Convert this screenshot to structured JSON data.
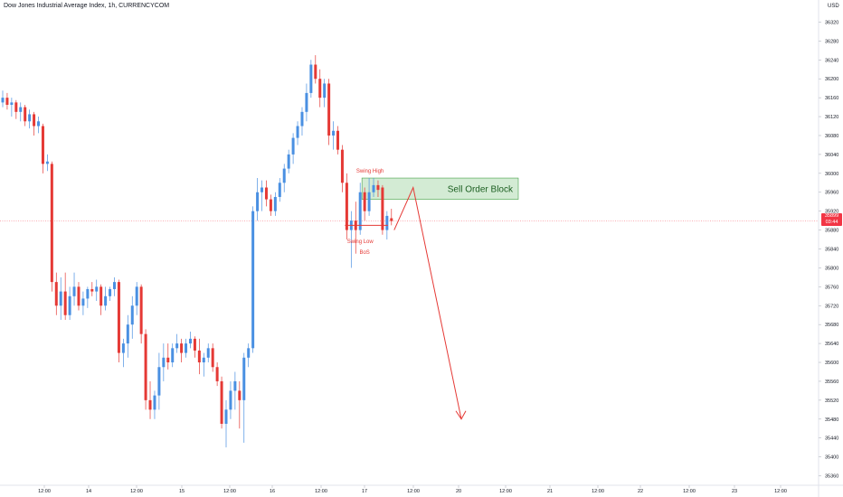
{
  "chart_data": {
    "type": "candlestick",
    "title": "Dow Jones Industrial Average Index, 1h, CURRENCYCOM",
    "currency": "USD",
    "ylim": [
      35340,
      36340
    ],
    "y_ticks": [
      36320,
      36280,
      36240,
      36200,
      36160,
      36120,
      36080,
      36040,
      36000,
      35960,
      35920,
      35880,
      35840,
      35800,
      35760,
      35720,
      35680,
      35640,
      35600,
      35560,
      35520,
      35480,
      35440,
      35400,
      35360
    ],
    "x_ticks": [
      "12:00",
      "14",
      "12:00",
      "15",
      "12:00",
      "16",
      "12:00",
      "17",
      "12:00",
      "20",
      "12:00",
      "21",
      "12:00",
      "22",
      "12:00",
      "23",
      "12:00"
    ],
    "current_price": "35899",
    "countdown": "03:44",
    "colors": {
      "up": "#4a90e2",
      "down": "#e53935",
      "zone_fill": "#c8e6c9",
      "zone_border": "#43a047",
      "annotation": "#e53935",
      "price_line": "#f23645"
    },
    "candles": [
      {
        "o": 36150,
        "h": 36175,
        "l": 36140,
        "c": 36160
      },
      {
        "o": 36160,
        "h": 36170,
        "l": 36135,
        "c": 36145
      },
      {
        "o": 36145,
        "h": 36160,
        "l": 36120,
        "c": 36150
      },
      {
        "o": 36150,
        "h": 36155,
        "l": 36115,
        "c": 36130
      },
      {
        "o": 36130,
        "h": 36150,
        "l": 36110,
        "c": 36140
      },
      {
        "o": 36140,
        "h": 36145,
        "l": 36100,
        "c": 36110
      },
      {
        "o": 36110,
        "h": 36135,
        "l": 36095,
        "c": 36125
      },
      {
        "o": 36125,
        "h": 36130,
        "l": 36080,
        "c": 36100
      },
      {
        "o": 36100,
        "h": 36120,
        "l": 36085,
        "c": 36110
      },
      {
        "o": 36100,
        "h": 36105,
        "l": 36000,
        "c": 36020
      },
      {
        "o": 36020,
        "h": 36040,
        "l": 36005,
        "c": 36025
      },
      {
        "o": 36020,
        "h": 36025,
        "l": 35750,
        "c": 35770
      },
      {
        "o": 35770,
        "h": 35790,
        "l": 35700,
        "c": 35720
      },
      {
        "o": 35720,
        "h": 35780,
        "l": 35690,
        "c": 35750
      },
      {
        "o": 35750,
        "h": 35790,
        "l": 35690,
        "c": 35700
      },
      {
        "o": 35700,
        "h": 35760,
        "l": 35690,
        "c": 35740
      },
      {
        "o": 35740,
        "h": 35790,
        "l": 35720,
        "c": 35760
      },
      {
        "o": 35760,
        "h": 35770,
        "l": 35710,
        "c": 35720
      },
      {
        "o": 35720,
        "h": 35750,
        "l": 35700,
        "c": 35735
      },
      {
        "o": 35735,
        "h": 35760,
        "l": 35715,
        "c": 35755
      },
      {
        "o": 35755,
        "h": 35770,
        "l": 35740,
        "c": 35750
      },
      {
        "o": 35750,
        "h": 35775,
        "l": 35730,
        "c": 35760
      },
      {
        "o": 35760,
        "h": 35765,
        "l": 35700,
        "c": 35720
      },
      {
        "o": 35720,
        "h": 35760,
        "l": 35710,
        "c": 35740
      },
      {
        "o": 35740,
        "h": 35760,
        "l": 35730,
        "c": 35755
      },
      {
        "o": 35755,
        "h": 35780,
        "l": 35740,
        "c": 35770
      },
      {
        "o": 35770,
        "h": 35775,
        "l": 35600,
        "c": 35620
      },
      {
        "o": 35620,
        "h": 35650,
        "l": 35590,
        "c": 35640
      },
      {
        "o": 35640,
        "h": 35700,
        "l": 35610,
        "c": 35680
      },
      {
        "o": 35680,
        "h": 35740,
        "l": 35650,
        "c": 35720
      },
      {
        "o": 35720,
        "h": 35770,
        "l": 35700,
        "c": 35760
      },
      {
        "o": 35760,
        "h": 35765,
        "l": 35640,
        "c": 35660
      },
      {
        "o": 35660,
        "h": 35670,
        "l": 35500,
        "c": 35520
      },
      {
        "o": 35520,
        "h": 35560,
        "l": 35480,
        "c": 35500
      },
      {
        "o": 35500,
        "h": 35540,
        "l": 35480,
        "c": 35530
      },
      {
        "o": 35530,
        "h": 35620,
        "l": 35500,
        "c": 35590
      },
      {
        "o": 35590,
        "h": 35640,
        "l": 35560,
        "c": 35610
      },
      {
        "o": 35610,
        "h": 35640,
        "l": 35585,
        "c": 35600
      },
      {
        "o": 35600,
        "h": 35640,
        "l": 35590,
        "c": 35630
      },
      {
        "o": 35630,
        "h": 35660,
        "l": 35620,
        "c": 35640
      },
      {
        "o": 35640,
        "h": 35650,
        "l": 35600,
        "c": 35620
      },
      {
        "o": 35620,
        "h": 35650,
        "l": 35610,
        "c": 35640
      },
      {
        "o": 35640,
        "h": 35665,
        "l": 35630,
        "c": 35650
      },
      {
        "o": 35650,
        "h": 35655,
        "l": 35610,
        "c": 35625
      },
      {
        "o": 35625,
        "h": 35650,
        "l": 35575,
        "c": 35600
      },
      {
        "o": 35600,
        "h": 35620,
        "l": 35570,
        "c": 35610
      },
      {
        "o": 35610,
        "h": 35640,
        "l": 35600,
        "c": 35630
      },
      {
        "o": 35630,
        "h": 35640,
        "l": 35580,
        "c": 35590
      },
      {
        "o": 35590,
        "h": 35600,
        "l": 35550,
        "c": 35560
      },
      {
        "o": 35560,
        "h": 35570,
        "l": 35460,
        "c": 35470
      },
      {
        "o": 35470,
        "h": 35520,
        "l": 35420,
        "c": 35500
      },
      {
        "o": 35500,
        "h": 35560,
        "l": 35480,
        "c": 35540
      },
      {
        "o": 35540,
        "h": 35580,
        "l": 35500,
        "c": 35560
      },
      {
        "o": 35540,
        "h": 35560,
        "l": 35460,
        "c": 35520
      },
      {
        "o": 35520,
        "h": 35620,
        "l": 35430,
        "c": 35610
      },
      {
        "o": 35610,
        "h": 35640,
        "l": 35590,
        "c": 35630
      },
      {
        "o": 35630,
        "h": 35930,
        "l": 35620,
        "c": 35920
      },
      {
        "o": 35920,
        "h": 35990,
        "l": 35900,
        "c": 35960
      },
      {
        "o": 35960,
        "h": 35985,
        "l": 35920,
        "c": 35970
      },
      {
        "o": 35970,
        "h": 35985,
        "l": 35930,
        "c": 35945
      },
      {
        "o": 35945,
        "h": 35955,
        "l": 35910,
        "c": 35920
      },
      {
        "o": 35920,
        "h": 35960,
        "l": 35910,
        "c": 35950
      },
      {
        "o": 35950,
        "h": 35990,
        "l": 35940,
        "c": 35980
      },
      {
        "o": 35980,
        "h": 36020,
        "l": 35960,
        "c": 36010
      },
      {
        "o": 36010,
        "h": 36050,
        "l": 36000,
        "c": 36040
      },
      {
        "o": 36040,
        "h": 36085,
        "l": 36020,
        "c": 36075
      },
      {
        "o": 36075,
        "h": 36110,
        "l": 36060,
        "c": 36100
      },
      {
        "o": 36100,
        "h": 36140,
        "l": 36080,
        "c": 36130
      },
      {
        "o": 36130,
        "h": 36190,
        "l": 36110,
        "c": 36170
      },
      {
        "o": 36170,
        "h": 36240,
        "l": 36160,
        "c": 36230
      },
      {
        "o": 36230,
        "h": 36250,
        "l": 36190,
        "c": 36200
      },
      {
        "o": 36200,
        "h": 36220,
        "l": 36140,
        "c": 36160
      },
      {
        "o": 36160,
        "h": 36200,
        "l": 36140,
        "c": 36190
      },
      {
        "o": 36190,
        "h": 36200,
        "l": 36060,
        "c": 36080
      },
      {
        "o": 36080,
        "h": 36110,
        "l": 36050,
        "c": 36090
      },
      {
        "o": 36090,
        "h": 36100,
        "l": 36040,
        "c": 36050
      },
      {
        "o": 36050,
        "h": 36060,
        "l": 35960,
        "c": 35980
      },
      {
        "o": 35980,
        "h": 36000,
        "l": 35860,
        "c": 35880
      },
      {
        "o": 35880,
        "h": 35920,
        "l": 35800,
        "c": 35900
      },
      {
        "o": 35900,
        "h": 35940,
        "l": 35830,
        "c": 35880
      },
      {
        "o": 35880,
        "h": 35980,
        "l": 35870,
        "c": 35960
      },
      {
        "o": 35960,
        "h": 35970,
        "l": 35900,
        "c": 35920
      },
      {
        "o": 35920,
        "h": 35990,
        "l": 35910,
        "c": 35960
      },
      {
        "o": 35960,
        "h": 35990,
        "l": 35950,
        "c": 35975
      },
      {
        "o": 35975,
        "h": 35985,
        "l": 35950,
        "c": 35965
      },
      {
        "o": 35970,
        "h": 35975,
        "l": 35870,
        "c": 35880
      },
      {
        "o": 35880,
        "h": 35920,
        "l": 35860,
        "c": 35910
      },
      {
        "o": 35905,
        "h": 35925,
        "l": 35890,
        "c": 35899
      }
    ],
    "annotations": {
      "swing_high": "Swing High",
      "swing_low": "Swing Low",
      "bos": "BoS",
      "zone_label": "Sell Order Block",
      "zone_top": 35990,
      "zone_bottom": 35945,
      "bos_level": 35890,
      "projection": [
        [
          35880,
          35880
        ],
        [
          35970,
          35970
        ],
        [
          35480,
          35480
        ]
      ]
    }
  }
}
